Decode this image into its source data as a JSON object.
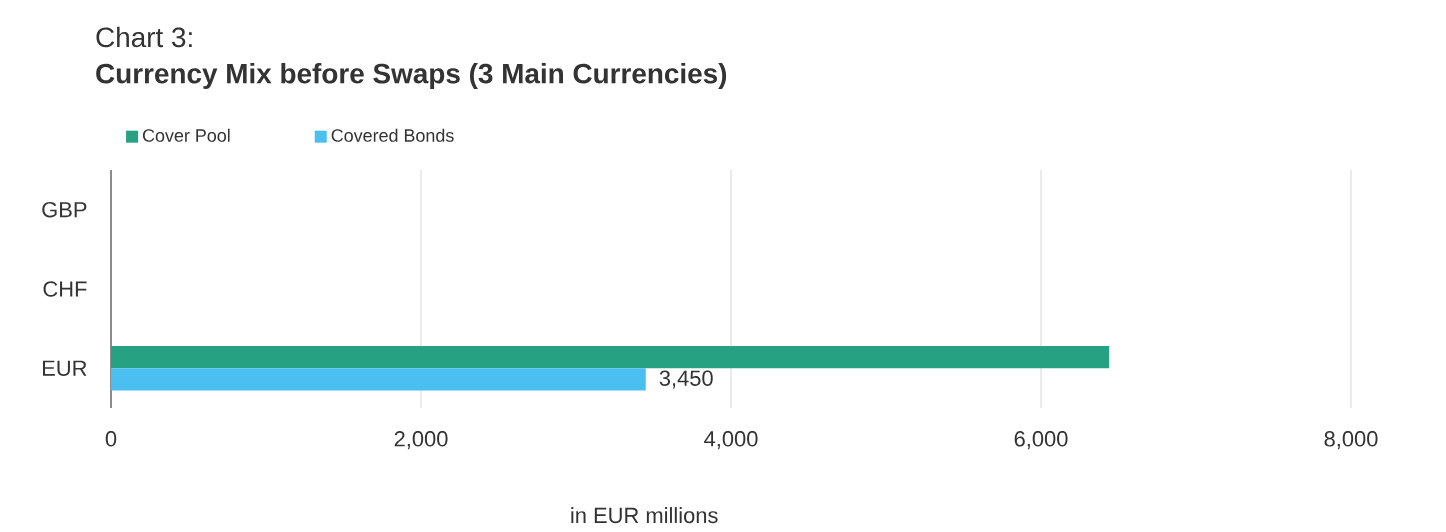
{
  "chart_data": {
    "type": "bar",
    "orientation": "horizontal",
    "title": "Chart 3:",
    "subtitle": "Currency Mix before Swaps (3 Main Currencies)",
    "xlabel": "in EUR millions",
    "categories": [
      "GBP",
      "CHF",
      "EUR"
    ],
    "series": [
      {
        "name": "Cover Pool",
        "color": "#26a283",
        "values": [
          null,
          null,
          6440
        ]
      },
      {
        "name": "Covered Bonds",
        "color": "#4bbff0",
        "values": [
          null,
          null,
          3450
        ],
        "value_labels": [
          null,
          null,
          "3,450"
        ]
      }
    ],
    "xlim": [
      0,
      8000
    ],
    "xticks": [
      0,
      {
        "value": 2000,
        "label": "2,000"
      },
      {
        "value": 4000,
        "label": "4,000"
      },
      {
        "value": 6000,
        "label": "6,000"
      },
      {
        "value": 8000,
        "label": "8,000"
      }
    ],
    "grid": "x",
    "legend": "top left"
  }
}
